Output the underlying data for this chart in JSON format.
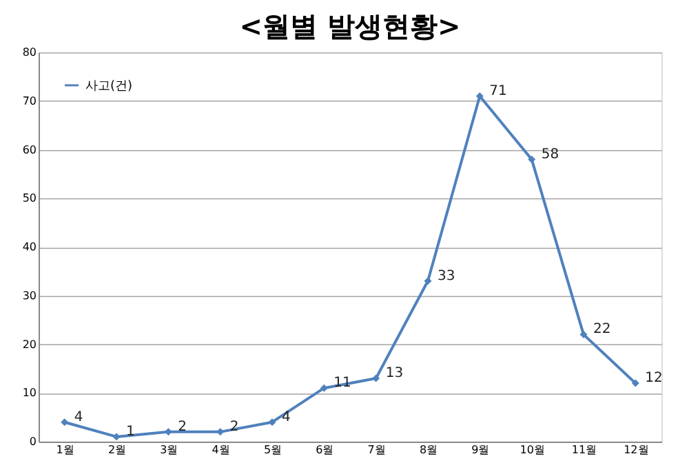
{
  "chart_data": {
    "type": "line",
    "title": "<월별 발생현황>",
    "categories": [
      "1월",
      "2월",
      "3월",
      "4월",
      "5월",
      "6월",
      "7월",
      "8월",
      "9월",
      "10월",
      "11월",
      "12월"
    ],
    "series": [
      {
        "name": "사고(건)",
        "color": "#4f81bd",
        "values": [
          4,
          1,
          2,
          2,
          4,
          11,
          13,
          33,
          71,
          58,
          22,
          12
        ]
      }
    ],
    "ylim": [
      0,
      80
    ],
    "yticks": [
      0,
      10,
      20,
      30,
      40,
      50,
      60,
      70,
      80
    ],
    "grid": "y",
    "legend": "top left",
    "marker": "diamond",
    "line_style": "solid",
    "data_labels": true
  }
}
